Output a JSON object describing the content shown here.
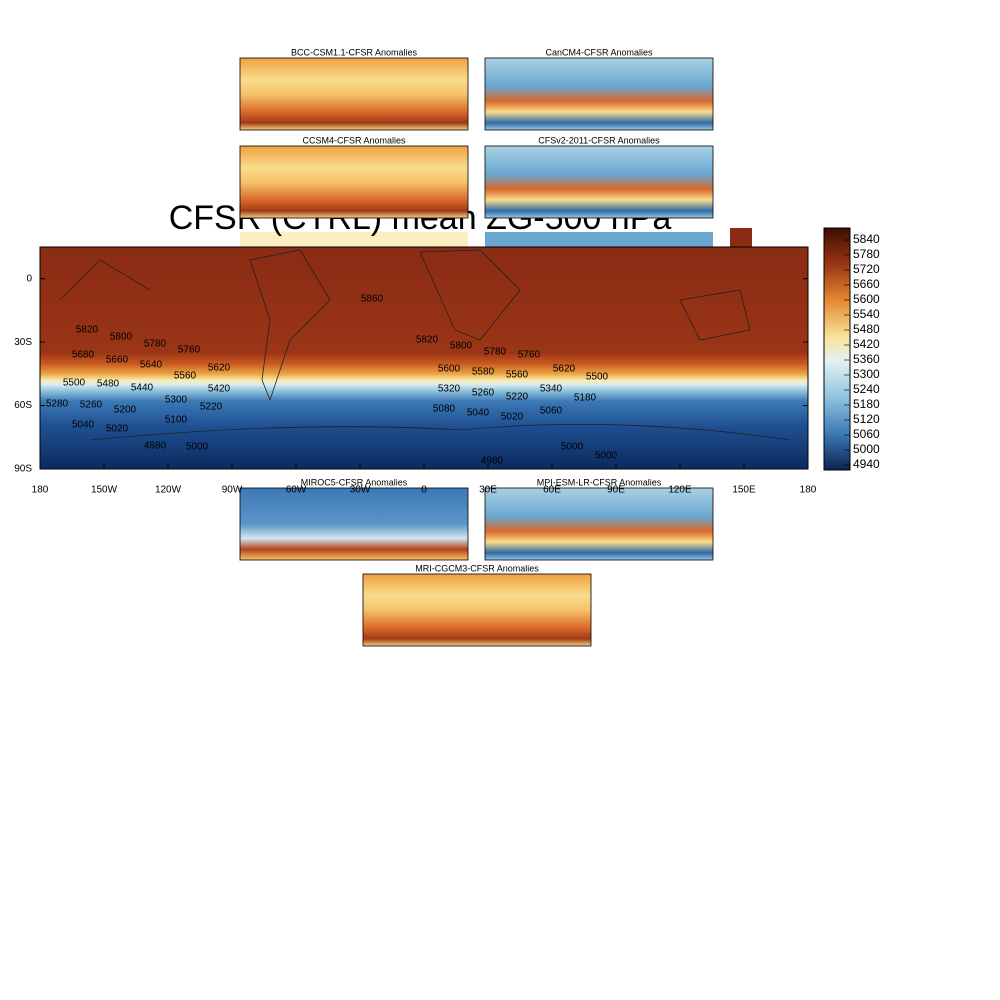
{
  "panels": [
    {
      "title": "BCC-CSM1.1-CFSR Anomalies"
    },
    {
      "title": "CanCM4-CFSR Anomalies"
    },
    {
      "title": "CCSM4-CFSR Anomalies"
    },
    {
      "title": "CFSv2-2011-CFSR Anomalies"
    },
    {
      "title": "MIROC5-CFSR Anomalies"
    },
    {
      "title": "MPI-ESM-LR-CFSR Anomalies"
    },
    {
      "title": "MRI-CGCM3-CFSR Anomalies"
    }
  ],
  "main": {
    "title": "CFSR (CTRL) mean ZG-500 hPa",
    "xlim": [
      -180,
      180
    ],
    "ylim": [
      -90,
      15
    ],
    "xticks": [
      {
        "value": -180,
        "label": "180"
      },
      {
        "value": -150,
        "label": "150W"
      },
      {
        "value": -120,
        "label": "120W"
      },
      {
        "value": -90,
        "label": "90W"
      },
      {
        "value": -60,
        "label": "60W"
      },
      {
        "value": -30,
        "label": "30W"
      },
      0,
      {
        "value": 30,
        "label": "30E"
      },
      {
        "value": 60,
        "label": "60E"
      },
      {
        "value": 90,
        "label": "90E"
      },
      {
        "value": 120,
        "label": "120E"
      },
      {
        "value": 150,
        "label": "150E"
      },
      180
    ],
    "yticks": [
      0,
      {
        "value": -30,
        "label": "30S"
      },
      {
        "value": -60,
        "label": "60S"
      },
      {
        "value": -90,
        "label": "90S"
      }
    ],
    "contour_labels": [
      5860,
      5820,
      5800,
      5780,
      5760,
      5620,
      5680,
      5660,
      5640,
      5560,
      5420,
      5500,
      5480,
      5440,
      5300,
      5220,
      5280,
      5260,
      5200,
      5100,
      5040,
      5020,
      4980,
      5000,
      5820,
      5800,
      5780,
      5760,
      5620,
      5500,
      5600,
      5580,
      5560,
      5320,
      5260,
      5220,
      5340,
      5180,
      5080,
      5040,
      5020,
      5060,
      5000,
      5000,
      4980
    ]
  },
  "colorbar": {
    "labels": [
      5840,
      5780,
      5720,
      5660,
      5600,
      5540,
      5480,
      5420,
      5360,
      5300,
      5240,
      5180,
      5120,
      5060,
      5000,
      4940
    ]
  }
}
